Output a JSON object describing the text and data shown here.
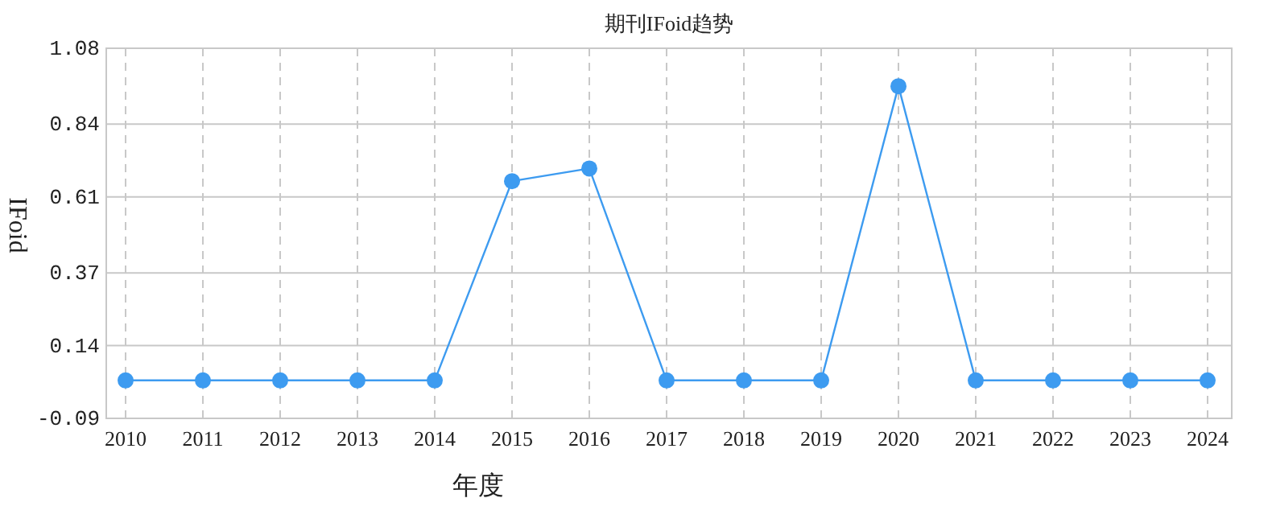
{
  "chart_data": {
    "type": "line",
    "title": "期刊IFoid趋势",
    "xlabel": "年度",
    "ylabel": "IFoid",
    "categories": [
      "2010",
      "2011",
      "2012",
      "2013",
      "2014",
      "2015",
      "2016",
      "2017",
      "2018",
      "2019",
      "2020",
      "2021",
      "2022",
      "2023",
      "2024"
    ],
    "series": [
      {
        "color": "#3d9bf0",
        "values": [
          0.03,
          0.03,
          0.03,
          0.03,
          0.03,
          0.66,
          0.7,
          0.03,
          0.03,
          0.03,
          0.96,
          0.03,
          0.03,
          0.03,
          0.03
        ]
      }
    ],
    "ylim": [
      -0.09,
      1.08
    ],
    "yticks": [
      -0.09,
      0.14,
      0.37,
      0.61,
      0.84,
      1.08
    ],
    "grid": true,
    "marker": "circle",
    "line_style": "solid"
  }
}
